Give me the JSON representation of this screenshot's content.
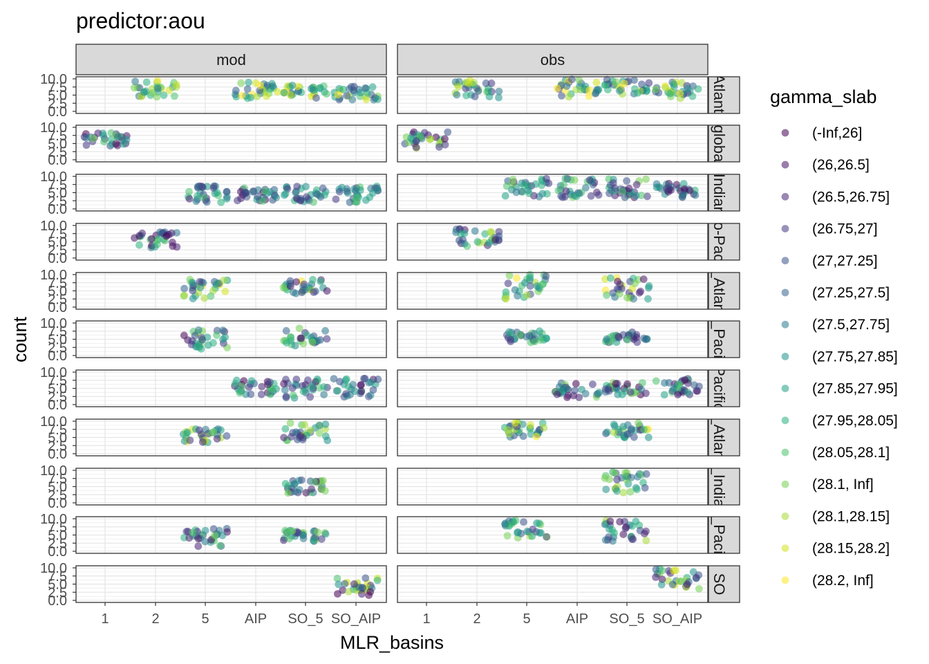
{
  "chart_data": {
    "type": "scatter",
    "title": "predictor:aou",
    "xlabel": "MLR_basins",
    "ylabel": "count",
    "x_categories": [
      "1",
      "2",
      "5",
      "AIP",
      "SO_5",
      "SO_AIP"
    ],
    "y_ticks": [
      "0.0",
      "2.5",
      "5.0",
      "7.5",
      "10.0"
    ],
    "ylim": [
      0,
      10
    ],
    "columns": [
      "mod",
      "obs"
    ],
    "rows": [
      "Atlanti",
      "globa",
      "Indiar",
      "o-Pac",
      "_Atlan",
      "_Paci",
      "Pacific",
      "_Atlan",
      "_India",
      "_Paci",
      "SO"
    ],
    "grid": true,
    "legend_position": "right",
    "legend": {
      "title": "gamma_slab",
      "items": [
        {
          "label": "(-Inf,26]",
          "color": "#440154"
        },
        {
          "label": "(26,26.5]",
          "color": "#471365"
        },
        {
          "label": "(26.5,26.75]",
          "color": "#482475"
        },
        {
          "label": "(26.75,27]",
          "color": "#443983"
        },
        {
          "label": "(27,27.25]",
          "color": "#3b528b"
        },
        {
          "label": "(27.25,27.5]",
          "color": "#33638d"
        },
        {
          "label": "(27.5,27.75]",
          "color": "#2a788e"
        },
        {
          "label": "(27.75,27.85]",
          "color": "#21918c"
        },
        {
          "label": "(27.85,27.95]",
          "color": "#1fa187"
        },
        {
          "label": "(27.95,28.05]",
          "color": "#2ab07f"
        },
        {
          "label": "(28.05,28.1]",
          "color": "#4ac16d"
        },
        {
          "label": "(28.1, Inf]",
          "color": "#75d054"
        },
        {
          "label": "(28.1,28.15]",
          "color": "#a5db36"
        },
        {
          "label": "(28.15,28.2]",
          "color": "#d2e21b"
        },
        {
          "label": "(28.2, Inf]",
          "color": "#fde725"
        }
      ]
    },
    "panels": [
      {
        "row": 0,
        "col": 0,
        "clusters": [
          {
            "x": "2",
            "lo": 4,
            "hi": 9.5,
            "cmin": 5,
            "cmax": 14
          },
          {
            "x": "AIP",
            "lo": 4,
            "hi": 9,
            "cmin": 4,
            "cmax": 14
          },
          {
            "x": "SO_5",
            "lo": 4,
            "hi": 8,
            "cmin": 4,
            "cmax": 14
          },
          {
            "x": "SO_AIP",
            "lo": 3.5,
            "hi": 8,
            "cmin": 4,
            "cmax": 14
          }
        ]
      },
      {
        "row": 0,
        "col": 1,
        "clusters": [
          {
            "x": "2",
            "lo": 4,
            "hi": 9.5,
            "cmin": 3,
            "cmax": 13
          },
          {
            "x": "AIP",
            "lo": 4,
            "hi": 10,
            "cmin": 3,
            "cmax": 14
          },
          {
            "x": "SO_5",
            "lo": 5,
            "hi": 10,
            "cmin": 3,
            "cmax": 14
          },
          {
            "x": "SO_AIP",
            "lo": 4,
            "hi": 9,
            "cmin": 3,
            "cmax": 14
          }
        ]
      },
      {
        "row": 1,
        "col": 0,
        "clusters": [
          {
            "x": "1",
            "lo": 4,
            "hi": 8.5,
            "cmin": 0,
            "cmax": 11
          }
        ]
      },
      {
        "row": 1,
        "col": 1,
        "clusters": [
          {
            "x": "1",
            "lo": 3.5,
            "hi": 9.5,
            "cmin": 0,
            "cmax": 12
          }
        ]
      },
      {
        "row": 2,
        "col": 0,
        "clusters": [
          {
            "x": "5",
            "lo": 2,
            "hi": 7,
            "cmin": 2,
            "cmax": 10
          },
          {
            "x": "AIP",
            "lo": 2,
            "hi": 7,
            "cmin": 1,
            "cmax": 10
          },
          {
            "x": "SO_5",
            "lo": 2,
            "hi": 7,
            "cmin": 2,
            "cmax": 10
          },
          {
            "x": "SO_AIP",
            "lo": 2,
            "hi": 7,
            "cmin": 2,
            "cmax": 10
          }
        ]
      },
      {
        "row": 2,
        "col": 1,
        "clusters": [
          {
            "x": "5",
            "lo": 3.5,
            "hi": 9.5,
            "cmin": 1,
            "cmax": 11
          },
          {
            "x": "AIP",
            "lo": 3.5,
            "hi": 9.5,
            "cmin": 1,
            "cmax": 11
          },
          {
            "x": "SO_5",
            "lo": 3.5,
            "hi": 9.5,
            "cmin": 1,
            "cmax": 11
          },
          {
            "x": "SO_AIP",
            "lo": 3.5,
            "hi": 8,
            "cmin": 1,
            "cmax": 10
          }
        ]
      },
      {
        "row": 3,
        "col": 0,
        "clusters": [
          {
            "x": "2",
            "lo": 3,
            "hi": 8,
            "cmin": 0,
            "cmax": 10
          }
        ]
      },
      {
        "row": 3,
        "col": 1,
        "clusters": [
          {
            "x": "2",
            "lo": 3.5,
            "hi": 9.5,
            "cmin": 1,
            "cmax": 12
          }
        ]
      },
      {
        "row": 4,
        "col": 0,
        "clusters": [
          {
            "x": "5",
            "lo": 2.5,
            "hi": 9,
            "cmin": 3,
            "cmax": 14
          },
          {
            "x": "SO_5",
            "lo": 4,
            "hi": 8.5,
            "cmin": 1,
            "cmax": 14
          }
        ]
      },
      {
        "row": 4,
        "col": 1,
        "clusters": [
          {
            "x": "5",
            "lo": 2.5,
            "hi": 10,
            "cmin": 3,
            "cmax": 14
          },
          {
            "x": "SO_5",
            "lo": 2,
            "hi": 9,
            "cmin": 1,
            "cmax": 14
          }
        ]
      },
      {
        "row": 5,
        "col": 0,
        "clusters": [
          {
            "x": "5",
            "lo": 2,
            "hi": 8,
            "cmin": 0,
            "cmax": 11
          },
          {
            "x": "SO_5",
            "lo": 3,
            "hi": 8.5,
            "cmin": 2,
            "cmax": 11
          }
        ]
      },
      {
        "row": 5,
        "col": 1,
        "clusters": [
          {
            "x": "5",
            "lo": 4,
            "hi": 7.5,
            "cmin": 3,
            "cmax": 11
          },
          {
            "x": "SO_5",
            "lo": 4,
            "hi": 7.5,
            "cmin": 2,
            "cmax": 10
          }
        ]
      },
      {
        "row": 6,
        "col": 0,
        "clusters": [
          {
            "x": "AIP",
            "lo": 3,
            "hi": 8,
            "cmin": 0,
            "cmax": 10
          },
          {
            "x": "SO_5",
            "lo": 2,
            "hi": 8,
            "cmin": 0,
            "cmax": 10
          },
          {
            "x": "SO_AIP",
            "lo": 2,
            "hi": 8,
            "cmin": 0,
            "cmax": 10
          }
        ]
      },
      {
        "row": 6,
        "col": 1,
        "clusters": [
          {
            "x": "AIP",
            "lo": 2,
            "hi": 7,
            "cmin": 0,
            "cmax": 11
          },
          {
            "x": "SO_5",
            "lo": 3,
            "hi": 7,
            "cmin": 0,
            "cmax": 11
          },
          {
            "x": "SO_AIP",
            "lo": 3,
            "hi": 8,
            "cmin": 0,
            "cmax": 11
          }
        ]
      },
      {
        "row": 7,
        "col": 0,
        "clusters": [
          {
            "x": "5",
            "lo": 3.5,
            "hi": 8,
            "cmin": 2,
            "cmax": 14
          },
          {
            "x": "SO_5",
            "lo": 4,
            "hi": 9.5,
            "cmin": 2,
            "cmax": 14
          }
        ]
      },
      {
        "row": 7,
        "col": 1,
        "clusters": [
          {
            "x": "5",
            "lo": 5,
            "hi": 9.5,
            "cmin": 3,
            "cmax": 14
          },
          {
            "x": "SO_5",
            "lo": 5,
            "hi": 9.5,
            "cmin": 3,
            "cmax": 14
          }
        ]
      },
      {
        "row": 8,
        "col": 0,
        "clusters": [
          {
            "x": "SO_5",
            "lo": 3,
            "hi": 7,
            "cmin": 0,
            "cmax": 11
          }
        ]
      },
      {
        "row": 8,
        "col": 1,
        "clusters": [
          {
            "x": "SO_5",
            "lo": 3,
            "hi": 9.5,
            "cmin": 2,
            "cmax": 12
          }
        ]
      },
      {
        "row": 9,
        "col": 0,
        "clusters": [
          {
            "x": "5",
            "lo": 1.5,
            "hi": 7,
            "cmin": 1,
            "cmax": 11
          },
          {
            "x": "SO_5",
            "lo": 3,
            "hi": 6.5,
            "cmin": 2,
            "cmax": 11
          }
        ]
      },
      {
        "row": 9,
        "col": 1,
        "clusters": [
          {
            "x": "5",
            "lo": 4,
            "hi": 9.5,
            "cmin": 3,
            "cmax": 12
          },
          {
            "x": "SO_5",
            "lo": 3,
            "hi": 9.5,
            "cmin": 1,
            "cmax": 12
          }
        ]
      },
      {
        "row": 10,
        "col": 0,
        "clusters": [
          {
            "x": "SO_AIP",
            "lo": 1.5,
            "hi": 7,
            "cmin": 0,
            "cmax": 14
          }
        ]
      },
      {
        "row": 10,
        "col": 1,
        "clusters": [
          {
            "x": "SO_AIP",
            "lo": 3.5,
            "hi": 10,
            "cmin": 0,
            "cmax": 14
          }
        ]
      }
    ]
  }
}
